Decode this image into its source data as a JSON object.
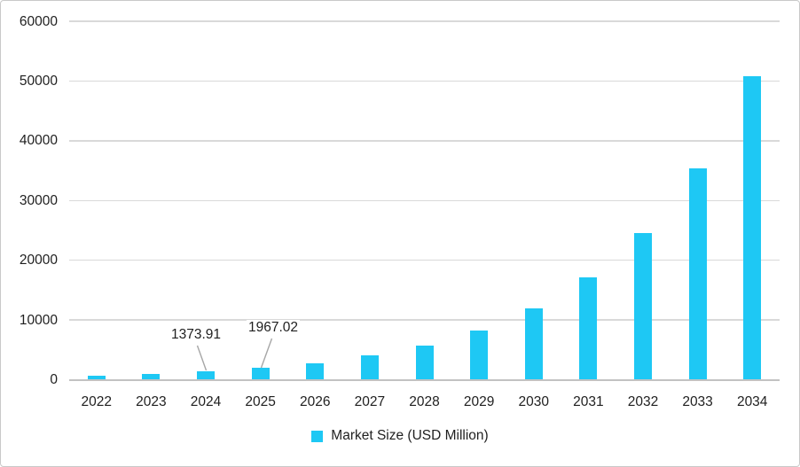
{
  "chart_data": {
    "type": "bar",
    "title": "",
    "xlabel": "",
    "ylabel": "",
    "categories": [
      "2022",
      "2023",
      "2024",
      "2025",
      "2026",
      "2027",
      "2028",
      "2029",
      "2030",
      "2031",
      "2032",
      "2033",
      "2034"
    ],
    "values": [
      670,
      960,
      1373.91,
      1967.02,
      2800,
      4020,
      5780,
      8280,
      11900,
      17060,
      24560,
      35380,
      50800
    ],
    "series": [
      {
        "name": "Market Size (USD Million)",
        "values": [
          670,
          960,
          1373.91,
          1967.02,
          2800,
          4020,
          5780,
          8280,
          11900,
          17060,
          24560,
          35380,
          50800
        ]
      }
    ],
    "ylim": [
      0,
      60000
    ],
    "ytick_step": 10000,
    "yticks": [
      "0",
      "10000",
      "20000",
      "30000",
      "40000",
      "50000",
      "60000"
    ],
    "grid": true,
    "legend": {
      "label": "Market Size (USD Million)",
      "position": "bottom"
    },
    "annotations": [
      {
        "category": "2024",
        "index": 2,
        "label": "1373.91"
      },
      {
        "category": "2025",
        "index": 3,
        "label": "1967.02"
      }
    ]
  },
  "colors": {
    "bar": "#1ec8f4",
    "gridline": "#d9d9d9",
    "axis_line": "#c2c2c2",
    "text": "#1f1f1f",
    "leader_line": "#a6a6a6",
    "frame_border": "#c9c9c9",
    "background": "#ffffff"
  }
}
